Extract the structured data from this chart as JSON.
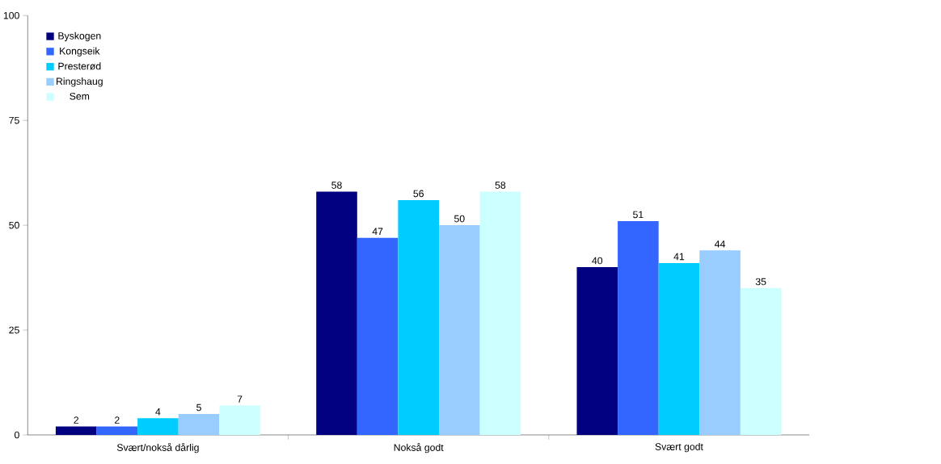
{
  "chart_data": {
    "type": "bar",
    "categories": [
      "Svært/nokså dårlig",
      "Nokså godt",
      "Svært godt"
    ],
    "series": [
      {
        "name": "Byskogen",
        "color": "#000080",
        "values": [
          2,
          58,
          40
        ]
      },
      {
        "name": "Kongseik",
        "color": "#3366ff",
        "values": [
          2,
          47,
          51
        ]
      },
      {
        "name": "Presterød",
        "color": "#00ccff",
        "values": [
          4,
          56,
          41
        ]
      },
      {
        "name": "Ringshaug",
        "color": "#99ccff",
        "values": [
          5,
          50,
          44
        ]
      },
      {
        "name": "Sem",
        "color": "#ccffff",
        "values": [
          7,
          58,
          35
        ]
      }
    ],
    "ylim": [
      0,
      100
    ],
    "yticks": [
      0,
      25,
      50,
      75,
      100
    ],
    "legend": "top left",
    "data_labels": true
  }
}
